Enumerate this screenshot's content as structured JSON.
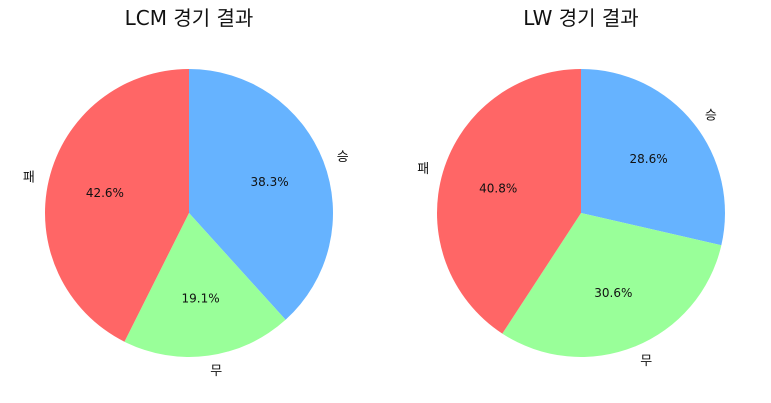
{
  "chart_data": [
    {
      "type": "pie",
      "title": "LCM 경기 결과",
      "start_angle_deg": 90,
      "direction": "clockwise",
      "slices": [
        {
          "label": "승",
          "value": 38.3,
          "pct_text": "38.3%",
          "color": "#66b3ff"
        },
        {
          "label": "무",
          "value": 19.1,
          "pct_text": "19.1%",
          "color": "#99ff99"
        },
        {
          "label": "패",
          "value": 42.6,
          "pct_text": "42.6%",
          "color": "#ff6666"
        }
      ]
    },
    {
      "type": "pie",
      "title": "LW 경기 결과",
      "start_angle_deg": 90,
      "direction": "clockwise",
      "slices": [
        {
          "label": "승",
          "value": 28.6,
          "pct_text": "28.6%",
          "color": "#66b3ff"
        },
        {
          "label": "무",
          "value": 30.6,
          "pct_text": "30.6%",
          "color": "#99ff99"
        },
        {
          "label": "패",
          "value": 40.8,
          "pct_text": "40.8%",
          "color": "#ff6666"
        }
      ]
    }
  ]
}
